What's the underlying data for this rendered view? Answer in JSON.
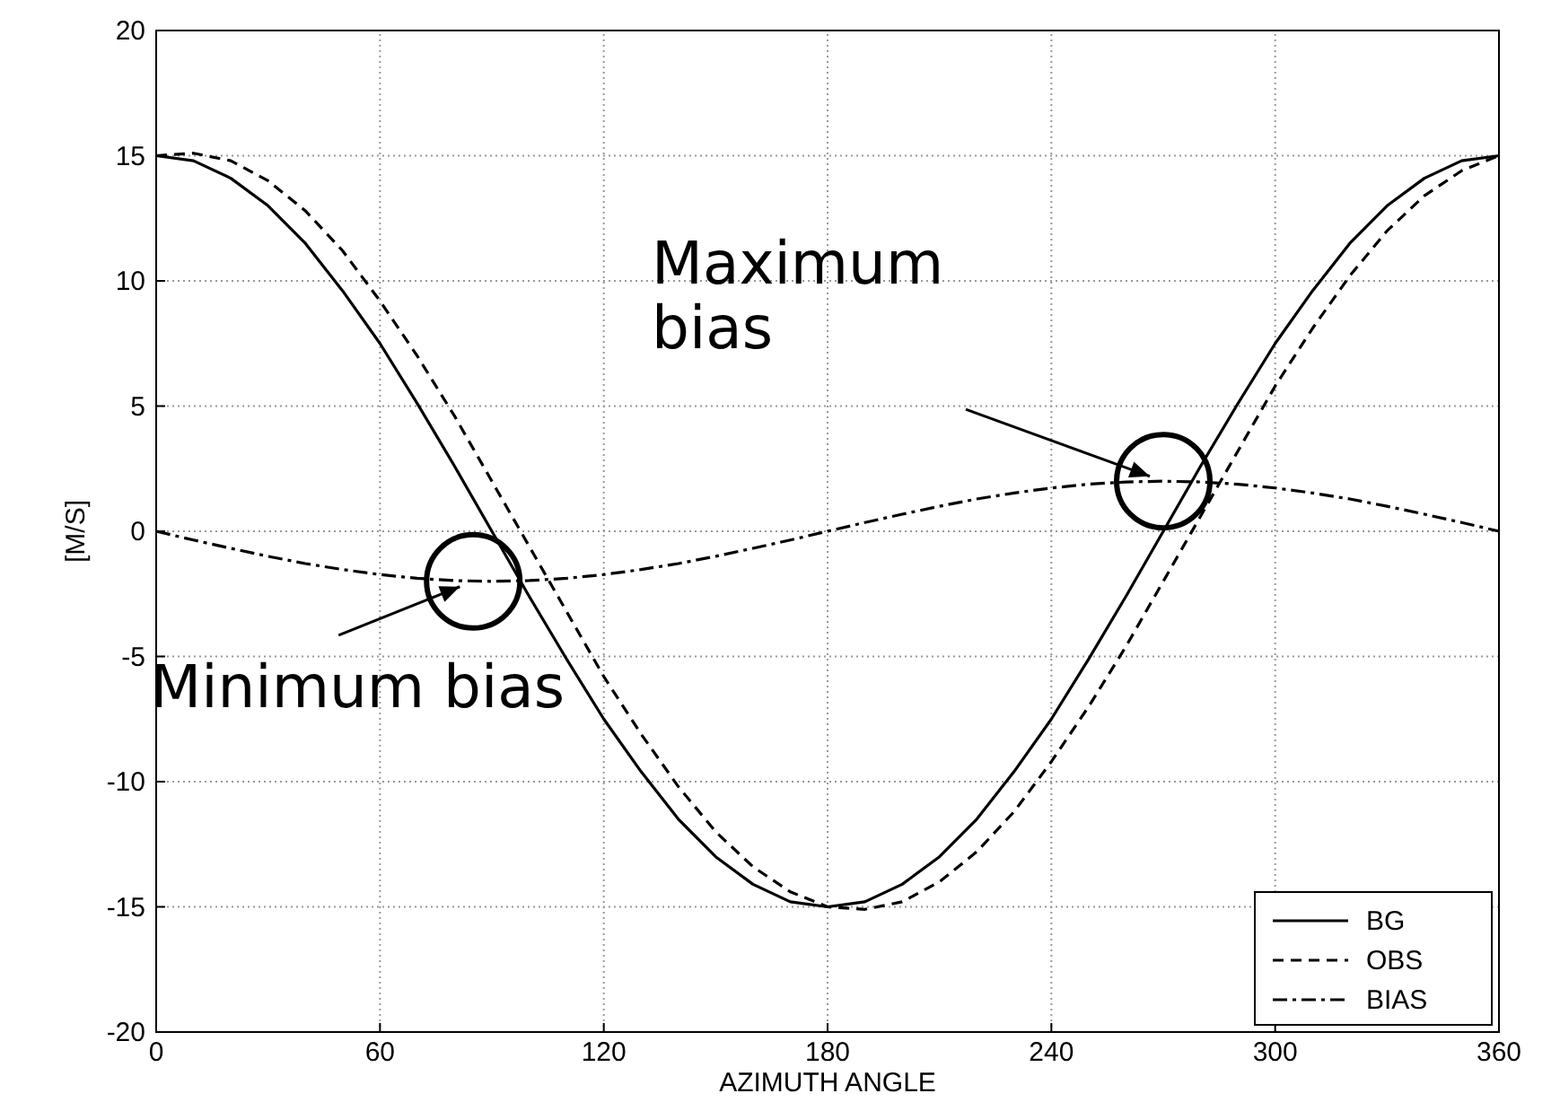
{
  "chart_data": {
    "type": "line",
    "xlabel": "AZIMUTH ANGLE",
    "ylabel": "[M/S]",
    "x": [
      0,
      10,
      20,
      30,
      40,
      50,
      60,
      70,
      80,
      90,
      100,
      110,
      120,
      130,
      140,
      150,
      160,
      170,
      180,
      190,
      200,
      210,
      220,
      230,
      240,
      250,
      260,
      270,
      280,
      290,
      300,
      310,
      320,
      330,
      340,
      350,
      360
    ],
    "series": [
      {
        "name": "BG",
        "color": "#000000",
        "line_style": "solid",
        "values": [
          15,
          14.8,
          14.1,
          13,
          11.5,
          9.6,
          7.5,
          5.1,
          2.6,
          0,
          -2.6,
          -5.1,
          -7.5,
          -9.6,
          -11.5,
          -13,
          -14.1,
          -14.8,
          -15,
          -14.8,
          -14.1,
          -13,
          -11.5,
          -9.6,
          -7.5,
          -5.1,
          -2.6,
          0,
          2.6,
          5.1,
          7.5,
          9.6,
          11.5,
          13,
          14.1,
          14.8,
          15
        ]
      },
      {
        "name": "OBS",
        "color": "#000000",
        "line_style": "dashed",
        "values": [
          15,
          15.1,
          14.8,
          14,
          12.8,
          11.2,
          9.2,
          7,
          4.6,
          2,
          -0.6,
          -3.2,
          -5.8,
          -8.1,
          -10.2,
          -12,
          -13.4,
          -14.4,
          -15,
          -15.1,
          -14.8,
          -14,
          -12.8,
          -11.2,
          -9.2,
          -7,
          -4.6,
          -2,
          0.6,
          3.2,
          5.8,
          8.1,
          10.2,
          12,
          13.4,
          14.4,
          15
        ]
      },
      {
        "name": "BIAS",
        "color": "#000000",
        "line_style": "dashdot",
        "values": [
          0,
          -0.35,
          -0.68,
          -1,
          -1.29,
          -1.53,
          -1.73,
          -1.88,
          -1.97,
          -2,
          -1.97,
          -1.88,
          -1.73,
          -1.53,
          -1.29,
          -1,
          -0.68,
          -0.35,
          0,
          0.35,
          0.68,
          1,
          1.29,
          1.53,
          1.73,
          1.88,
          1.97,
          2,
          1.97,
          1.88,
          1.73,
          1.53,
          1.29,
          1,
          0.68,
          0.35,
          0
        ]
      }
    ],
    "xlim": [
      0,
      360
    ],
    "xticks": [
      0,
      60,
      120,
      180,
      240,
      300,
      360
    ],
    "ylim": [
      -20,
      20
    ],
    "yticks": [
      -20,
      -15,
      -10,
      -5,
      0,
      5,
      10,
      15,
      20
    ],
    "grid": true,
    "legend": "bottom right",
    "marker": "none",
    "annotations": [
      {
        "text": "Minimum bias",
        "x": 85,
        "y": -2
      },
      {
        "text": "Maximum bias",
        "x": 270,
        "y": 2
      }
    ]
  }
}
